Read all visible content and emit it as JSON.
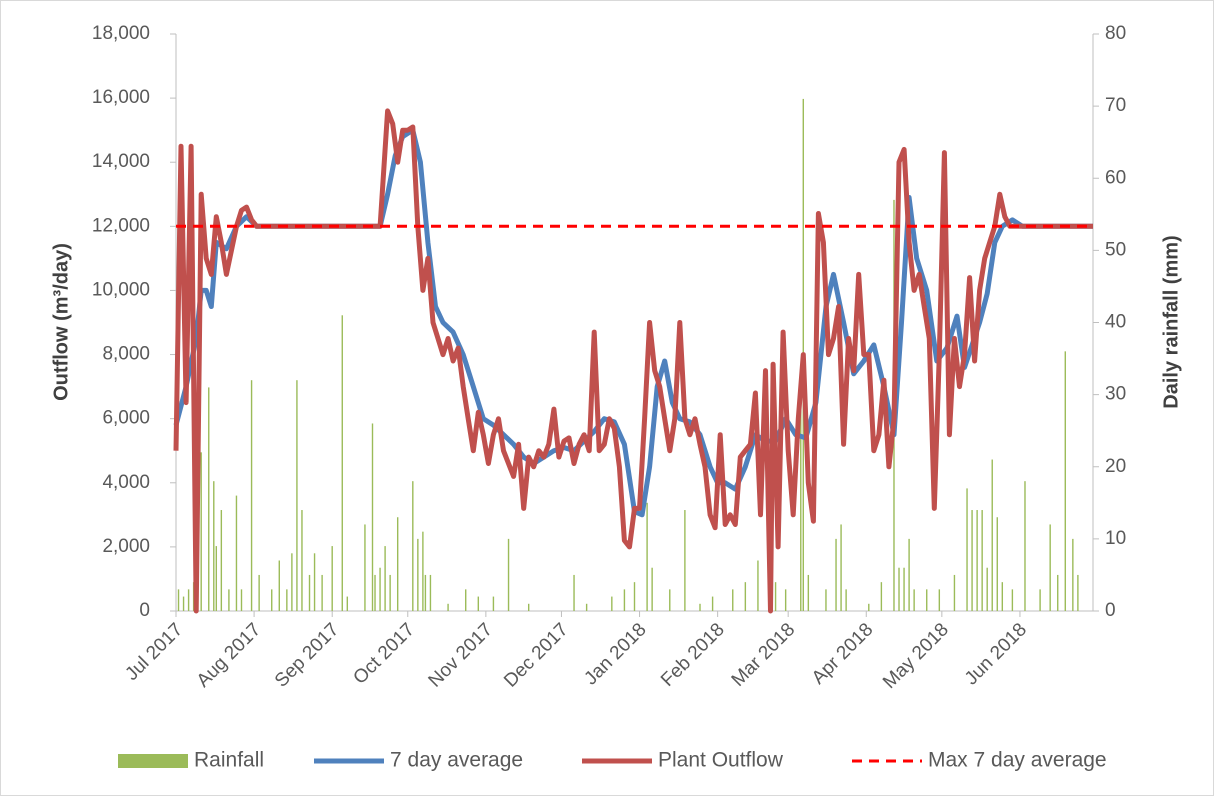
{
  "chart_data": {
    "type": "combo",
    "ylabel": "Outflow (m³/day)",
    "y2label": "Daily rainfall (mm)",
    "xlim": [
      0,
      364
    ],
    "xticks": [
      {
        "value": 0,
        "label": "Jul 2017"
      },
      {
        "value": 31,
        "label": "Aug 2017"
      },
      {
        "value": 62,
        "label": "Sep 2017"
      },
      {
        "value": 92,
        "label": "Oct 2017"
      },
      {
        "value": 123,
        "label": "Nov 2017"
      },
      {
        "value": 153,
        "label": "Dec 2017"
      },
      {
        "value": 184,
        "label": "Jan 2018"
      },
      {
        "value": 215,
        "label": "Feb 2018"
      },
      {
        "value": 243,
        "label": "Mar 2018"
      },
      {
        "value": 274,
        "label": "Apr 2018"
      },
      {
        "value": 304,
        "label": "May 2018"
      },
      {
        "value": 335,
        "label": "Jun 2018"
      }
    ],
    "ylim": [
      0,
      18000
    ],
    "yticks": [
      0,
      {
        "value": 2000,
        "label": "2,000"
      },
      {
        "value": 4000,
        "label": "4,000"
      },
      {
        "value": 6000,
        "label": "6,000"
      },
      {
        "value": 8000,
        "label": "8,000"
      },
      {
        "value": 10000,
        "label": "10,000"
      },
      {
        "value": 12000,
        "label": "12,000"
      },
      {
        "value": 14000,
        "label": "14,000"
      },
      {
        "value": 16000,
        "label": "16,000"
      },
      {
        "value": 18000,
        "label": "18,000"
      }
    ],
    "y2lim": [
      0,
      80
    ],
    "y2ticks": [
      0,
      10,
      20,
      30,
      40,
      50,
      60,
      70,
      80
    ],
    "legend": "bottom",
    "series": [
      {
        "name": "Rainfall",
        "type": "bar",
        "axis": "y2",
        "color": "#9bbb59",
        "x": [
          1,
          3,
          5,
          7,
          10,
          13,
          15,
          16,
          18,
          21,
          24,
          26,
          30,
          33,
          38,
          41,
          44,
          46,
          48,
          50,
          53,
          55,
          58,
          62,
          66,
          68,
          75,
          78,
          79,
          81,
          83,
          85,
          88,
          94,
          96,
          98,
          99,
          101,
          108,
          115,
          120,
          126,
          132,
          140,
          158,
          163,
          173,
          178,
          182,
          187,
          189,
          196,
          202,
          208,
          213,
          221,
          226,
          231,
          238,
          242,
          248,
          249,
          251,
          258,
          262,
          264,
          266,
          275,
          280,
          285,
          287,
          289,
          291,
          293,
          298,
          303,
          309,
          314,
          316,
          318,
          320,
          322,
          324,
          326,
          328,
          332,
          337,
          343,
          347,
          350,
          353,
          356,
          358
        ],
        "values": [
          3,
          2,
          3,
          4,
          22,
          31,
          18,
          9,
          14,
          3,
          16,
          3,
          32,
          5,
          3,
          7,
          3,
          8,
          32,
          14,
          5,
          8,
          5,
          9,
          41,
          2,
          12,
          26,
          5,
          6,
          9,
          5,
          13,
          18,
          10,
          11,
          5,
          5,
          1,
          3,
          2,
          2,
          10,
          1,
          5,
          1,
          2,
          3,
          4,
          15,
          6,
          3,
          14,
          1,
          2,
          3,
          4,
          7,
          4,
          3,
          29,
          71,
          5,
          3,
          10,
          12,
          3,
          1,
          4,
          57,
          6,
          6,
          10,
          3,
          3,
          3,
          5,
          17,
          14,
          14,
          14,
          6,
          21,
          13,
          4,
          3,
          18,
          3,
          12,
          5,
          36,
          10,
          5
        ]
      },
      {
        "name": "7 day average",
        "type": "line",
        "color": "#4f81bd",
        "x": [
          0,
          4,
          8,
          10,
          12,
          14,
          16,
          20,
          24,
          28,
          32,
          81,
          84,
          87,
          90,
          94,
          97,
          100,
          103,
          106,
          110,
          114,
          118,
          122,
          126,
          130,
          134,
          138,
          142,
          146,
          150,
          154,
          158,
          162,
          166,
          170,
          174,
          178,
          182,
          185,
          188,
          191,
          194,
          197,
          200,
          204,
          208,
          212,
          215,
          218,
          222,
          226,
          230,
          234,
          238,
          242,
          246,
          250,
          254,
          258,
          261,
          265,
          269,
          273,
          277,
          281,
          285,
          288,
          291,
          294,
          298,
          302,
          306,
          310,
          313,
          316,
          319,
          322,
          325,
          328,
          332,
          336,
          364
        ],
        "values": [
          5800,
          7000,
          8500,
          10000,
          10000,
          9500,
          11500,
          11300,
          12000,
          12300,
          12000,
          12000,
          13000,
          14200,
          14800,
          15000,
          14000,
          11500,
          9500,
          9000,
          8700,
          8000,
          7000,
          6000,
          5800,
          5500,
          5200,
          4800,
          4600,
          4800,
          5000,
          5100,
          5000,
          5300,
          5600,
          6000,
          5900,
          5200,
          3100,
          3000,
          4500,
          7000,
          7800,
          6500,
          6000,
          5900,
          5500,
          4500,
          4000,
          4000,
          3800,
          4500,
          5500,
          5300,
          5300,
          6000,
          5500,
          5400,
          6500,
          9500,
          10500,
          9000,
          7400,
          7800,
          8300,
          7000,
          5500,
          9000,
          12900,
          11000,
          10000,
          7800,
          8200,
          9200,
          7600,
          8300,
          9000,
          9900,
          11500,
          12000,
          12200,
          12000,
          12000
        ]
      },
      {
        "name": "Plant Outflow",
        "type": "line",
        "color": "#c0504d",
        "x": [
          0,
          2,
          4,
          6,
          8,
          10,
          12,
          14,
          16,
          18,
          20,
          24,
          26,
          28,
          30,
          32,
          81,
          84,
          86,
          88,
          90,
          92,
          94,
          96,
          98,
          100,
          102,
          104,
          106,
          108,
          110,
          112,
          114,
          116,
          118,
          120,
          122,
          124,
          126,
          128,
          130,
          132,
          134,
          136,
          138,
          140,
          142,
          144,
          146,
          148,
          150,
          152,
          154,
          156,
          158,
          160,
          162,
          164,
          166,
          168,
          170,
          172,
          174,
          176,
          178,
          180,
          182,
          184,
          186,
          188,
          190,
          192,
          194,
          196,
          198,
          200,
          202,
          204,
          206,
          208,
          210,
          212,
          214,
          216,
          218,
          220,
          222,
          224,
          226,
          228,
          230,
          232,
          234,
          236,
          237,
          239,
          241,
          243,
          245,
          247,
          249,
          251,
          253,
          255,
          257,
          259,
          261,
          263,
          265,
          267,
          269,
          271,
          273,
          275,
          277,
          279,
          281,
          283,
          285,
          287,
          289,
          291,
          293,
          295,
          297,
          299,
          301,
          303,
          305,
          307,
          309,
          311,
          313,
          315,
          317,
          319,
          321,
          323,
          325,
          327,
          329,
          331,
          340,
          364
        ],
        "values": [
          5000,
          14500,
          6500,
          14500,
          0,
          13000,
          11000,
          10500,
          12300,
          11500,
          10500,
          12000,
          12500,
          12600,
          12200,
          12000,
          12000,
          15600,
          15200,
          14000,
          15000,
          15000,
          15100,
          12000,
          10000,
          11000,
          9000,
          8500,
          8000,
          8500,
          7800,
          8200,
          7000,
          6000,
          5000,
          6200,
          5500,
          4600,
          5500,
          6000,
          5000,
          4600,
          4200,
          5200,
          3200,
          4800,
          4500,
          5000,
          4800,
          5200,
          6300,
          4800,
          5300,
          5400,
          4600,
          5200,
          5500,
          5000,
          8700,
          5000,
          5200,
          6000,
          5700,
          4500,
          2200,
          2000,
          3200,
          3200,
          6000,
          9000,
          7500,
          7000,
          6000,
          5000,
          6000,
          9000,
          6000,
          5500,
          6000,
          5200,
          4500,
          3000,
          2600,
          5500,
          2700,
          3000,
          2700,
          4800,
          5000,
          5200,
          6800,
          3000,
          7500,
          0,
          7700,
          2000,
          8700,
          5000,
          3000,
          6000,
          8000,
          4000,
          2800,
          12400,
          11500,
          8000,
          8500,
          9500,
          5200,
          8500,
          7500,
          10500,
          8000,
          8000,
          5000,
          5500,
          7200,
          4500,
          6000,
          14000,
          14400,
          11500,
          10000,
          10500,
          9500,
          8500,
          3200,
          8000,
          14300,
          5500,
          8500,
          7000,
          8000,
          10400,
          7800,
          10000,
          11000,
          11500,
          12000,
          13000,
          12300,
          12000,
          12000,
          12000
        ]
      },
      {
        "name": "Max 7 day average",
        "type": "line",
        "dash": "dashed",
        "color": "#ff0000",
        "x": [
          0,
          364
        ],
        "values": [
          12000,
          12000
        ]
      }
    ]
  }
}
